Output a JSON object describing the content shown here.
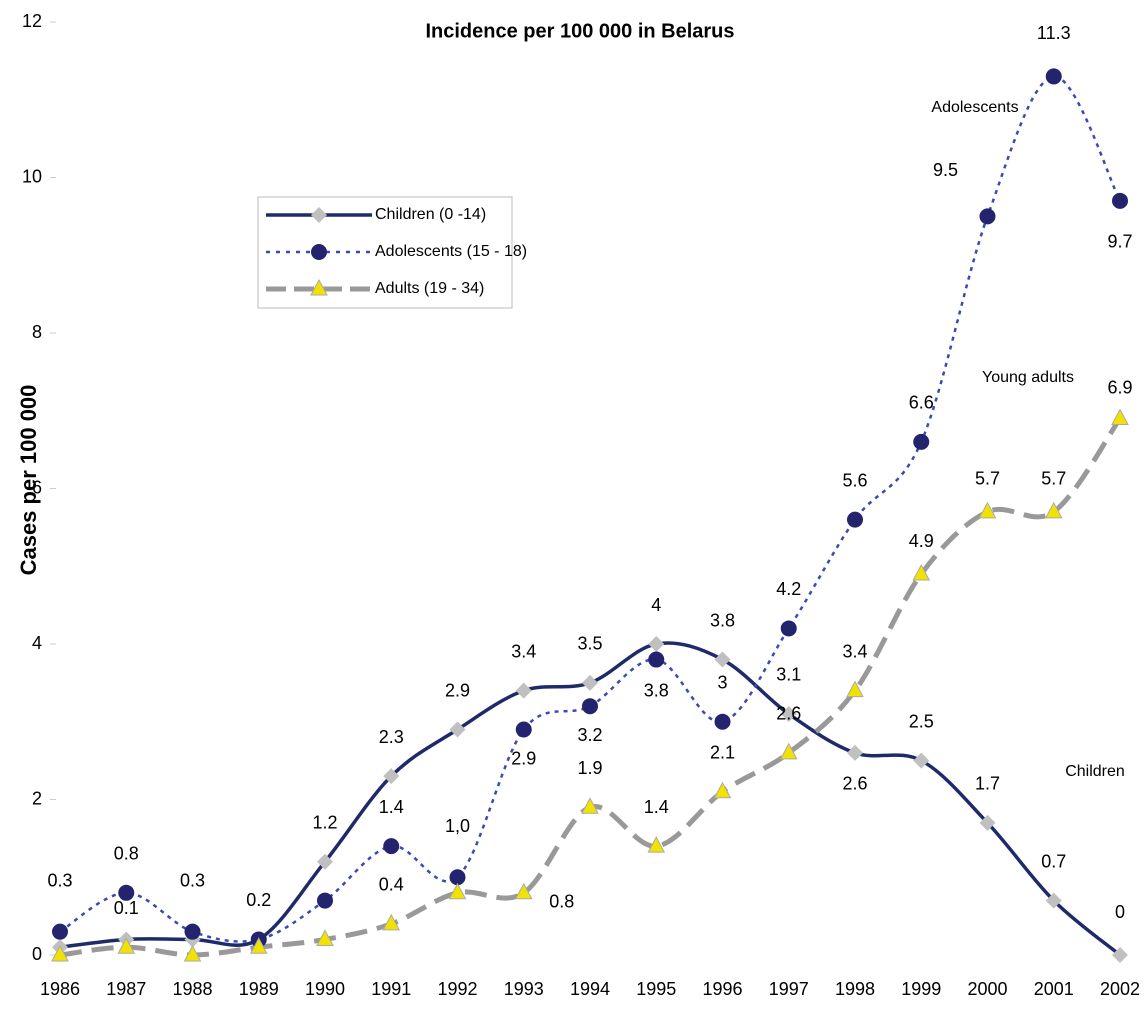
{
  "chart_data": {
    "type": "line",
    "title": "Incidence per 100 000 in Belarus",
    "ylabel": "Cases per 100 000",
    "categories": [
      "1986",
      "1987",
      "1988",
      "1989",
      "1990",
      "1991",
      "1992",
      "1993",
      "1994",
      "1995",
      "1996",
      "1997",
      "1998",
      "1999",
      "2000",
      "2001",
      "2002"
    ],
    "ylim": [
      0,
      12
    ],
    "yticks": [
      0,
      2,
      4,
      6,
      8,
      10,
      12
    ],
    "grid": false,
    "legend": "upper left",
    "annotations": [
      "Adolescents",
      "Young adults",
      "Children"
    ],
    "series": [
      {
        "name": "Children  (0 -14)",
        "color": "#1f2a6b",
        "marker_color": "#c0c0c0",
        "values": [
          0.1,
          0.2,
          0.2,
          0.2,
          1.2,
          2.3,
          2.9,
          3.4,
          3.5,
          4,
          3.8,
          3.1,
          2.6,
          2.5,
          1.7,
          0.7,
          0
        ],
        "value_labels": [
          null,
          null,
          null,
          null,
          "1.2",
          "2.3",
          "2.9",
          "3.4",
          "3.5",
          "4",
          "3.8",
          "3.1",
          "2.6",
          "2.5",
          "1.7",
          "0.7",
          "0"
        ]
      },
      {
        "name": "Adolescents (15 - 18)",
        "color": "#3a4bb0",
        "marker_color": "#23236e",
        "values": [
          0.3,
          0.8,
          0.3,
          0.2,
          0.7,
          1.4,
          1.0,
          2.9,
          3.2,
          3.8,
          3,
          4.2,
          5.6,
          6.6,
          9.5,
          11.3,
          9.7
        ],
        "value_labels": [
          "0.3",
          "0.8",
          "0.3",
          "0.2",
          null,
          "1.4",
          "1,0",
          "2.9",
          "3.2",
          "3.8",
          "3",
          "4.2",
          "5.6",
          "6.6",
          "9.5",
          "11.3",
          "9.7"
        ]
      },
      {
        "name": "Adults (19 - 34)",
        "color": "#999999",
        "marker_color": "#f2e200",
        "values": [
          0,
          0.1,
          0,
          0.1,
          0.2,
          0.4,
          0.8,
          0.8,
          1.9,
          1.4,
          2.1,
          2.6,
          3.4,
          4.9,
          5.7,
          5.7,
          6.9
        ],
        "value_labels": [
          null,
          "0.1",
          null,
          null,
          null,
          "0.4",
          null,
          "0.8",
          "1.9",
          "1.4",
          "2.1",
          "2.6",
          "3.4",
          "4.9",
          "5.7",
          "5.7",
          "6.9"
        ]
      }
    ]
  }
}
